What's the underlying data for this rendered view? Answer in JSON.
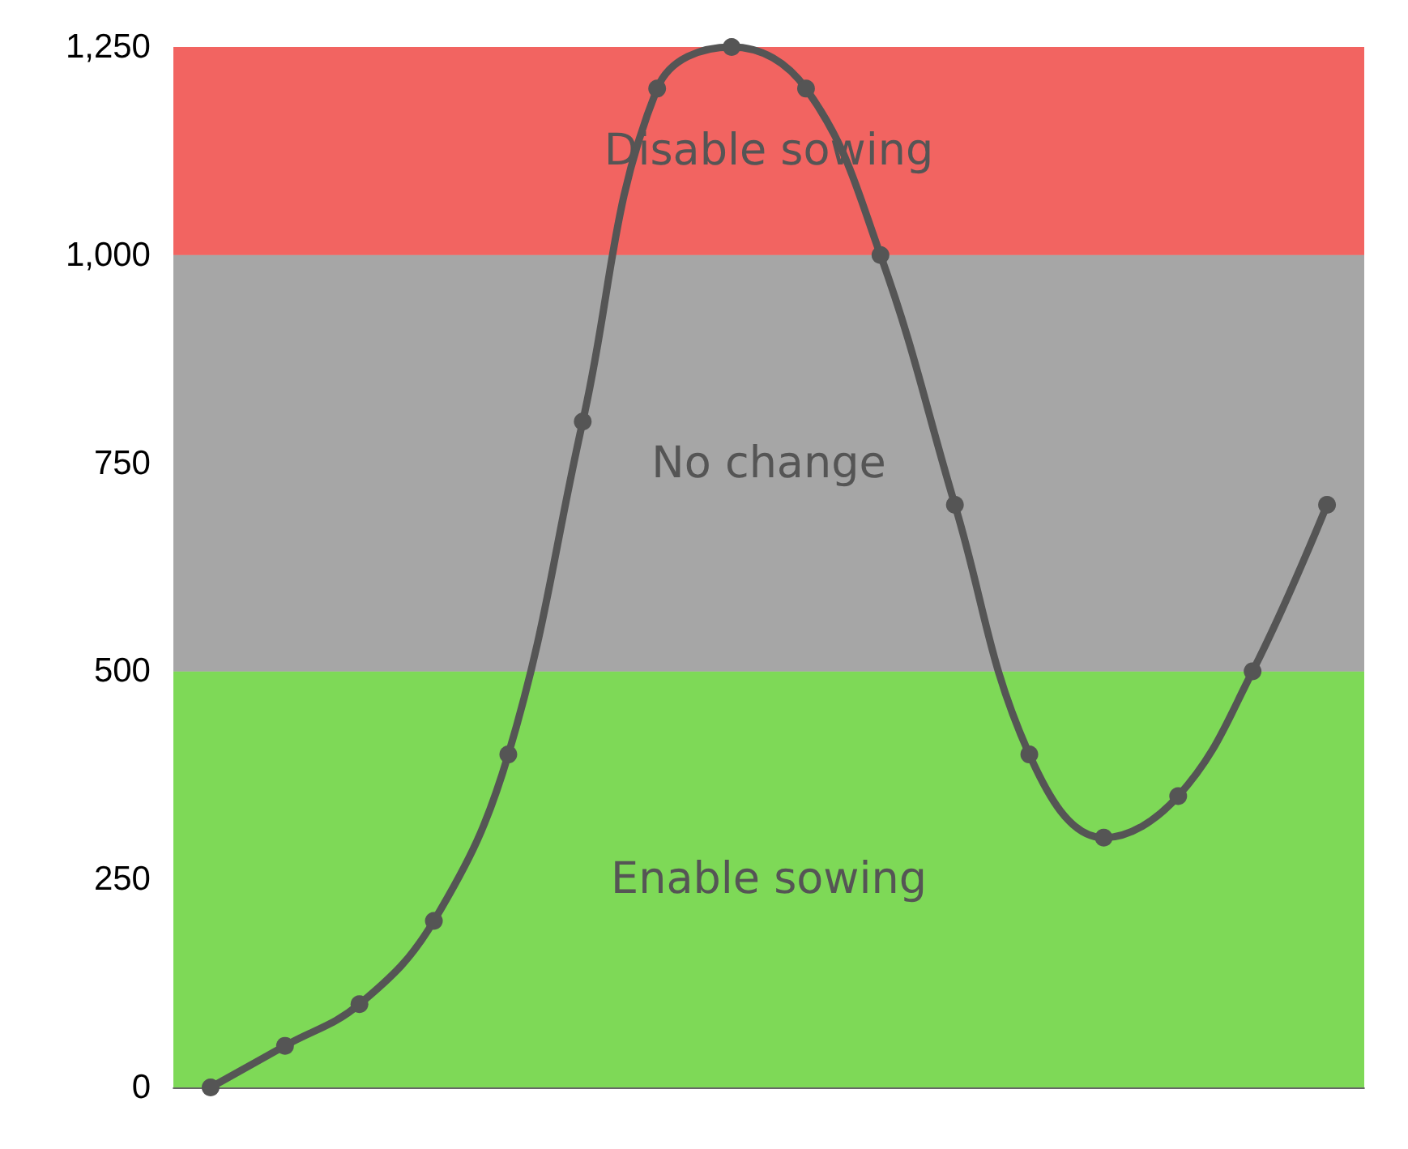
{
  "chart_data": {
    "type": "line",
    "categories": [
      null,
      null,
      null,
      null,
      null,
      null,
      null,
      null,
      null,
      null,
      null,
      null,
      null,
      null,
      null,
      null
    ],
    "series": [
      {
        "color": "#555555",
        "values": [
          0,
          50,
          100,
          200,
          400,
          800,
          1200,
          1250,
          1200,
          1000,
          700,
          400,
          300,
          350,
          500,
          700
        ]
      }
    ],
    "ylim": [
      0,
      1250
    ],
    "yticks": [
      0,
      250,
      500,
      750,
      {
        "value": 1000,
        "label": "1,000"
      },
      {
        "value": 1250,
        "label": "1,250"
      }
    ],
    "bands": [
      {
        "axis": "y",
        "from": 0,
        "to": 500,
        "label": "Enable sowing",
        "color": "#7ed957"
      },
      {
        "axis": "y",
        "from": 500,
        "to": 1000,
        "label": "No change",
        "color": "#a6a6a6"
      },
      {
        "axis": "y",
        "from": 1000,
        "to": 1250,
        "label": "Disable sowing",
        "color": "#f26461"
      }
    ],
    "grid": "y",
    "marker": "circle",
    "line_style": "solid"
  }
}
